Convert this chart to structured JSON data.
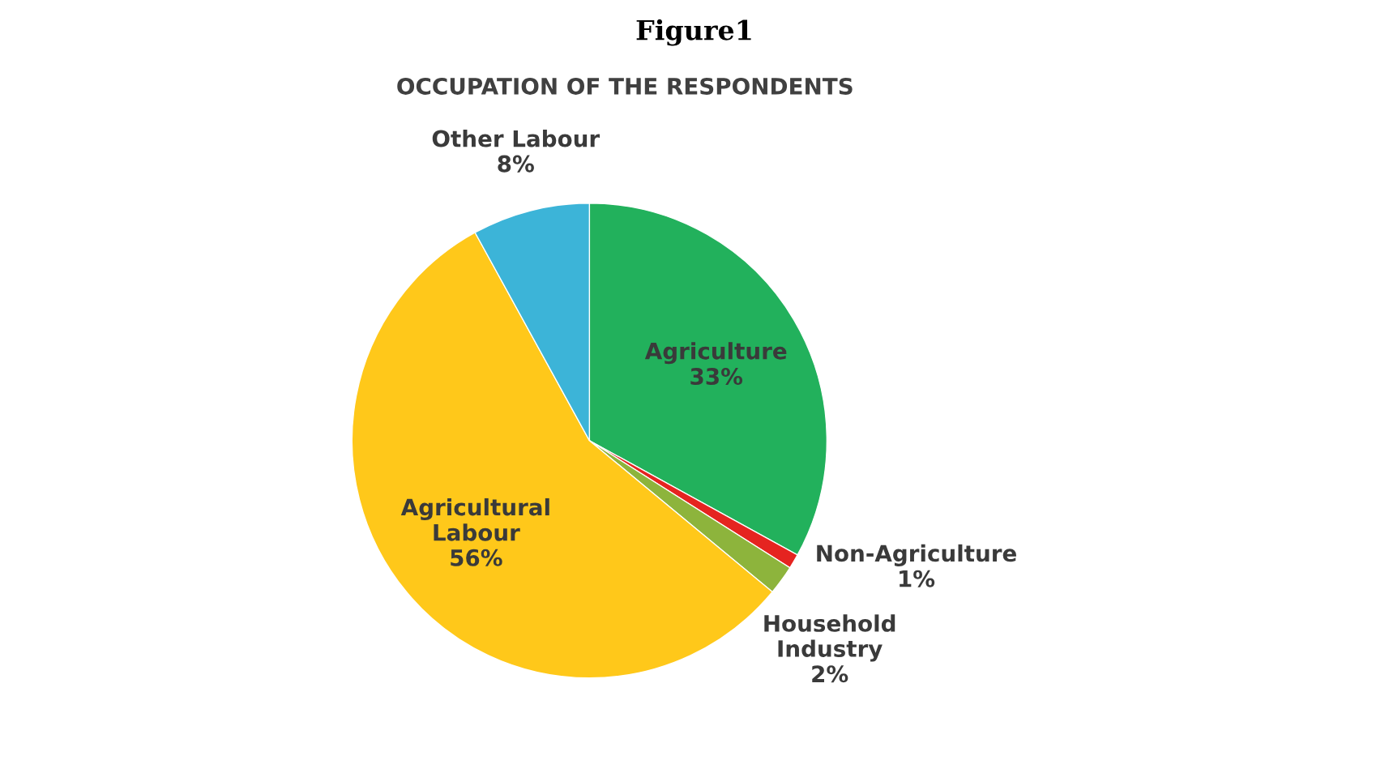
{
  "chart_data": {
    "type": "pie",
    "title": "Figure1",
    "subtitle": "OCCUPATION OF THE RESPONDENTS",
    "categories": [
      "Agriculture",
      "Non-Agriculture",
      "Household Industry",
      "Agricultural Labour",
      "Other Labour"
    ],
    "values": [
      33,
      1,
      2,
      56,
      8
    ],
    "value_labels": [
      "33%",
      "1%",
      "2%",
      "56%",
      "8%"
    ],
    "colors": [
      "#22b15c",
      "#e52420",
      "#8db43c",
      "#ffc81a",
      "#3cb4d8"
    ],
    "legend": false
  }
}
